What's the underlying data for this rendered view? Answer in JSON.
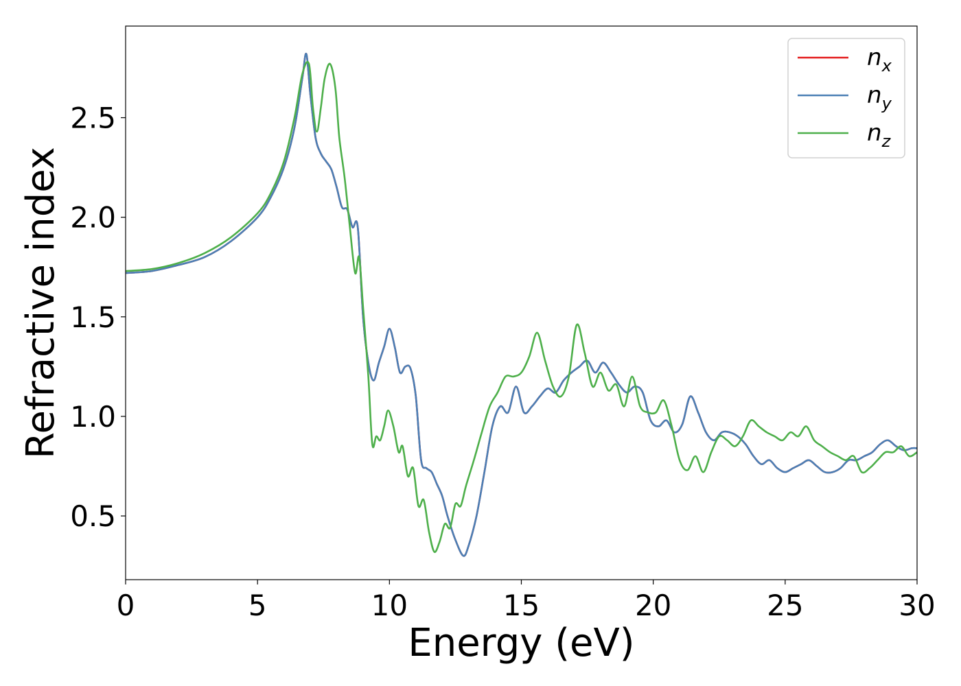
{
  "chart_data": {
    "type": "line",
    "title": "",
    "xlabel": "Energy (eV)",
    "ylabel": "Refractive index",
    "xlim": [
      0,
      30
    ],
    "ylim": [
      0.18,
      2.96
    ],
    "xticks": [
      0,
      5,
      10,
      15,
      20,
      25,
      30
    ],
    "xtick_labels": [
      "0",
      "5",
      "10",
      "15",
      "20",
      "25",
      "30"
    ],
    "yticks": [
      0.5,
      1.0,
      1.5,
      2.0,
      2.5
    ],
    "ytick_labels": [
      "0.5",
      "1.0",
      "1.5",
      "2.0",
      "2.5"
    ],
    "grid": false,
    "legend_position": "top-right",
    "series": [
      {
        "name": "n_x",
        "legend_main": "n",
        "legend_sub": "x",
        "color": "#e41a1c",
        "x": [
          0,
          1,
          2,
          3,
          4,
          5,
          5.5,
          6,
          6.4,
          6.7,
          6.85,
          7.0,
          7.2,
          7.4,
          7.6,
          7.8,
          8.0,
          8.2,
          8.4,
          8.6,
          8.8,
          9.0,
          9.2,
          9.4,
          9.6,
          9.8,
          10.0,
          10.2,
          10.4,
          10.6,
          10.8,
          11.0,
          11.2,
          11.4,
          11.6,
          11.8,
          12.0,
          12.2,
          12.5,
          12.8,
          13.0,
          13.3,
          13.6,
          13.9,
          14.2,
          14.5,
          14.8,
          15.1,
          15.4,
          15.7,
          16.0,
          16.3,
          16.6,
          16.9,
          17.2,
          17.5,
          17.8,
          18.1,
          18.4,
          18.7,
          19.0,
          19.3,
          19.6,
          19.9,
          20.2,
          20.5,
          20.8,
          21.1,
          21.4,
          21.7,
          22.0,
          22.3,
          22.6,
          22.9,
          23.2,
          23.5,
          23.8,
          24.1,
          24.4,
          24.7,
          25.0,
          25.3,
          25.6,
          25.9,
          26.2,
          26.5,
          26.8,
          27.1,
          27.4,
          27.7,
          28.0,
          28.3,
          28.6,
          28.9,
          29.2,
          29.5,
          29.8,
          30.0
        ],
        "y": [
          1.72,
          1.73,
          1.76,
          1.8,
          1.88,
          2.0,
          2.1,
          2.25,
          2.45,
          2.7,
          2.82,
          2.62,
          2.4,
          2.32,
          2.28,
          2.24,
          2.15,
          2.05,
          2.04,
          1.95,
          1.95,
          1.5,
          1.27,
          1.18,
          1.27,
          1.35,
          1.44,
          1.35,
          1.22,
          1.25,
          1.24,
          1.1,
          0.78,
          0.74,
          0.72,
          0.66,
          0.6,
          0.5,
          0.38,
          0.3,
          0.35,
          0.5,
          0.72,
          0.95,
          1.05,
          1.02,
          1.15,
          1.02,
          1.05,
          1.1,
          1.14,
          1.12,
          1.18,
          1.22,
          1.25,
          1.28,
          1.22,
          1.27,
          1.22,
          1.16,
          1.12,
          1.15,
          1.12,
          0.98,
          0.95,
          0.98,
          0.92,
          0.96,
          1.1,
          1.02,
          0.92,
          0.88,
          0.92,
          0.92,
          0.9,
          0.86,
          0.8,
          0.76,
          0.78,
          0.74,
          0.72,
          0.74,
          0.76,
          0.78,
          0.75,
          0.72,
          0.72,
          0.74,
          0.78,
          0.78,
          0.8,
          0.82,
          0.86,
          0.88,
          0.85,
          0.83,
          0.84,
          0.84
        ]
      },
      {
        "name": "n_y",
        "legend_main": "n",
        "legend_sub": "y",
        "color": "#4a7fb5",
        "x": [
          0,
          1,
          2,
          3,
          4,
          5,
          5.5,
          6,
          6.4,
          6.7,
          6.85,
          7.0,
          7.2,
          7.4,
          7.6,
          7.8,
          8.0,
          8.2,
          8.4,
          8.6,
          8.8,
          9.0,
          9.2,
          9.4,
          9.6,
          9.8,
          10.0,
          10.2,
          10.4,
          10.6,
          10.8,
          11.0,
          11.2,
          11.4,
          11.6,
          11.8,
          12.0,
          12.2,
          12.5,
          12.8,
          13.0,
          13.3,
          13.6,
          13.9,
          14.2,
          14.5,
          14.8,
          15.1,
          15.4,
          15.7,
          16.0,
          16.3,
          16.6,
          16.9,
          17.2,
          17.5,
          17.8,
          18.1,
          18.4,
          18.7,
          19.0,
          19.3,
          19.6,
          19.9,
          20.2,
          20.5,
          20.8,
          21.1,
          21.4,
          21.7,
          22.0,
          22.3,
          22.6,
          22.9,
          23.2,
          23.5,
          23.8,
          24.1,
          24.4,
          24.7,
          25.0,
          25.3,
          25.6,
          25.9,
          26.2,
          26.5,
          26.8,
          27.1,
          27.4,
          27.7,
          28.0,
          28.3,
          28.6,
          28.9,
          29.2,
          29.5,
          29.8,
          30.0
        ],
        "y": [
          1.72,
          1.73,
          1.76,
          1.8,
          1.88,
          2.0,
          2.1,
          2.25,
          2.45,
          2.7,
          2.82,
          2.62,
          2.4,
          2.32,
          2.28,
          2.24,
          2.15,
          2.05,
          2.04,
          1.95,
          1.95,
          1.5,
          1.27,
          1.18,
          1.27,
          1.35,
          1.44,
          1.35,
          1.22,
          1.25,
          1.24,
          1.1,
          0.78,
          0.74,
          0.72,
          0.66,
          0.6,
          0.5,
          0.38,
          0.3,
          0.35,
          0.5,
          0.72,
          0.95,
          1.05,
          1.02,
          1.15,
          1.02,
          1.05,
          1.1,
          1.14,
          1.12,
          1.18,
          1.22,
          1.25,
          1.28,
          1.22,
          1.27,
          1.22,
          1.16,
          1.12,
          1.15,
          1.12,
          0.98,
          0.95,
          0.98,
          0.92,
          0.96,
          1.1,
          1.02,
          0.92,
          0.88,
          0.92,
          0.92,
          0.9,
          0.86,
          0.8,
          0.76,
          0.78,
          0.74,
          0.72,
          0.74,
          0.76,
          0.78,
          0.75,
          0.72,
          0.72,
          0.74,
          0.78,
          0.78,
          0.8,
          0.82,
          0.86,
          0.88,
          0.85,
          0.83,
          0.84,
          0.84
        ]
      },
      {
        "name": "n_z",
        "legend_main": "n",
        "legend_sub": "z",
        "color": "#4daf4a",
        "x": [
          0,
          1,
          2,
          3,
          4,
          5,
          5.5,
          6,
          6.4,
          6.7,
          6.95,
          7.1,
          7.25,
          7.4,
          7.55,
          7.75,
          7.95,
          8.1,
          8.3,
          8.5,
          8.7,
          8.85,
          9.0,
          9.2,
          9.35,
          9.5,
          9.65,
          9.8,
          9.95,
          10.15,
          10.35,
          10.5,
          10.7,
          10.9,
          11.1,
          11.3,
          11.5,
          11.7,
          11.9,
          12.1,
          12.3,
          12.5,
          12.7,
          12.9,
          13.2,
          13.5,
          13.8,
          14.1,
          14.4,
          14.7,
          15.0,
          15.3,
          15.6,
          15.9,
          16.2,
          16.5,
          16.8,
          17.1,
          17.4,
          17.7,
          18.0,
          18.3,
          18.6,
          18.9,
          19.2,
          19.5,
          19.8,
          20.1,
          20.4,
          20.7,
          21.0,
          21.3,
          21.6,
          21.9,
          22.2,
          22.5,
          22.8,
          23.1,
          23.4,
          23.7,
          24.0,
          24.3,
          24.6,
          24.9,
          25.2,
          25.5,
          25.8,
          26.1,
          26.4,
          26.7,
          27.0,
          27.3,
          27.6,
          27.9,
          28.2,
          28.5,
          28.8,
          29.1,
          29.4,
          29.7,
          30.0
        ],
        "y": [
          1.73,
          1.74,
          1.77,
          1.82,
          1.9,
          2.02,
          2.12,
          2.28,
          2.5,
          2.72,
          2.77,
          2.55,
          2.43,
          2.55,
          2.7,
          2.77,
          2.65,
          2.4,
          2.2,
          1.95,
          1.72,
          1.8,
          1.55,
          1.2,
          0.86,
          0.9,
          0.88,
          0.95,
          1.03,
          0.95,
          0.82,
          0.85,
          0.7,
          0.74,
          0.55,
          0.58,
          0.42,
          0.32,
          0.37,
          0.46,
          0.44,
          0.56,
          0.55,
          0.65,
          0.78,
          0.92,
          1.05,
          1.12,
          1.2,
          1.2,
          1.22,
          1.3,
          1.42,
          1.28,
          1.15,
          1.1,
          1.2,
          1.46,
          1.32,
          1.15,
          1.22,
          1.13,
          1.16,
          1.05,
          1.2,
          1.05,
          1.02,
          1.02,
          1.08,
          0.95,
          0.78,
          0.73,
          0.8,
          0.72,
          0.82,
          0.9,
          0.88,
          0.85,
          0.9,
          0.98,
          0.95,
          0.92,
          0.9,
          0.88,
          0.92,
          0.9,
          0.95,
          0.88,
          0.85,
          0.82,
          0.8,
          0.78,
          0.8,
          0.72,
          0.74,
          0.78,
          0.82,
          0.82,
          0.85,
          0.8,
          0.82
        ]
      }
    ]
  }
}
